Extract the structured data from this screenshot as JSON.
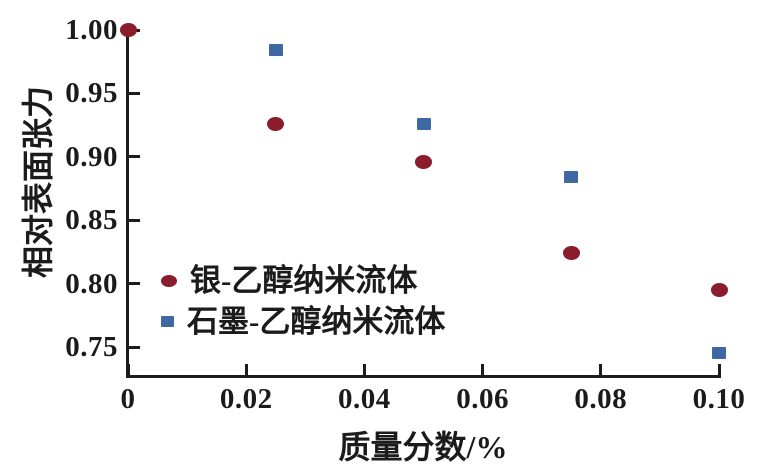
{
  "chart_data": {
    "type": "scatter",
    "title": "",
    "xlabel": "质量分数/%",
    "ylabel": "相对表面张力",
    "xlim": [
      0,
      0.1
    ],
    "ylim": [
      0.726,
      1.0
    ],
    "x_ticks": [
      0,
      0.02,
      0.04,
      0.06,
      0.08,
      0.1
    ],
    "x_tick_labels": [
      "0",
      "0.02",
      "0.04",
      "0.06",
      "0.08",
      "0.10"
    ],
    "y_ticks": [
      1.0,
      0.95,
      0.9,
      0.85,
      0.8,
      0.75
    ],
    "y_tick_labels": [
      "1.00",
      "0.95",
      "0.90",
      "0.85",
      "0.80",
      "0.75"
    ],
    "grid": false,
    "legend_position": "inside-lower-left",
    "series": [
      {
        "name": "银-乙醇纳米流体",
        "marker": "circle",
        "color": "#8A1C2C",
        "points": [
          [
            0,
            1.0
          ],
          [
            0.025,
            0.926
          ],
          [
            0.05,
            0.896
          ],
          [
            0.075,
            0.824
          ],
          [
            0.1,
            0.795
          ]
        ]
      },
      {
        "name": "石墨-乙醇纳米流体",
        "marker": "square",
        "color": "#3E68A4",
        "points": [
          [
            0.025,
            0.984
          ],
          [
            0.05,
            0.926
          ],
          [
            0.075,
            0.884
          ],
          [
            0.1,
            0.745
          ]
        ]
      }
    ]
  },
  "colors": {
    "axis": "#1b1b1b",
    "text": "#1b1b1b",
    "background": "#ffffff",
    "series_silver_ethanol": "#8A1C2C",
    "series_graphite_ethanol": "#3E68A4"
  }
}
